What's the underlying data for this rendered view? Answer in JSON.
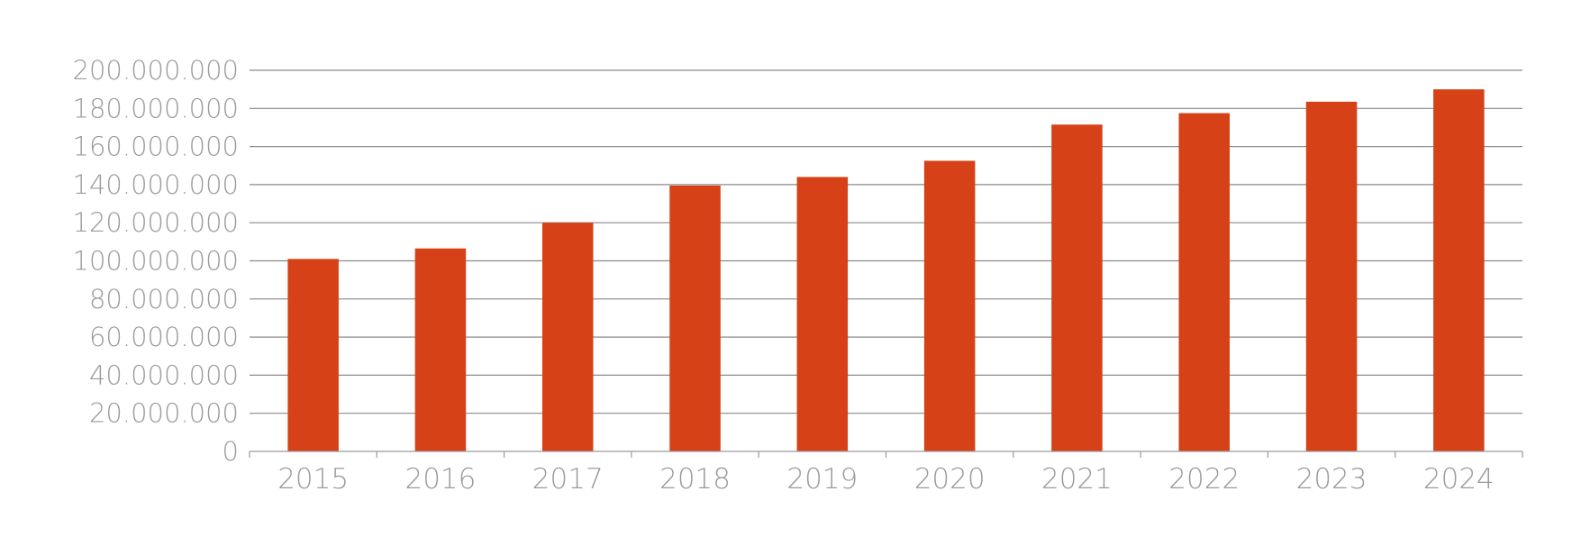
{
  "chart_data": {
    "type": "bar",
    "categories": [
      "2015",
      "2016",
      "2017",
      "2018",
      "2019",
      "2020",
      "2021",
      "2022",
      "2023",
      "2024"
    ],
    "values": [
      101000000,
      106500000,
      120000000,
      139500000,
      144000000,
      152500000,
      171500000,
      177500000,
      183500000,
      190000000
    ],
    "ylim": [
      0,
      200000000
    ],
    "y_ticks": [
      0,
      20000000,
      40000000,
      60000000,
      80000000,
      100000000,
      120000000,
      140000000,
      160000000,
      180000000,
      200000000
    ],
    "y_tick_labels": [
      "0",
      "20.000.000",
      "40.000.000",
      "60.000.000",
      "80.000.000",
      "100.000.000",
      "120.000.000",
      "140.000.000",
      "160.000.000",
      "180.000.000",
      "200.000.000"
    ],
    "grid": true,
    "legend": "none",
    "title": "",
    "xlabel": "",
    "ylabel": "",
    "colors": {
      "bar": "#d64117",
      "grid": "#8a8a8a",
      "tick_text": "#9b9b9b"
    }
  }
}
